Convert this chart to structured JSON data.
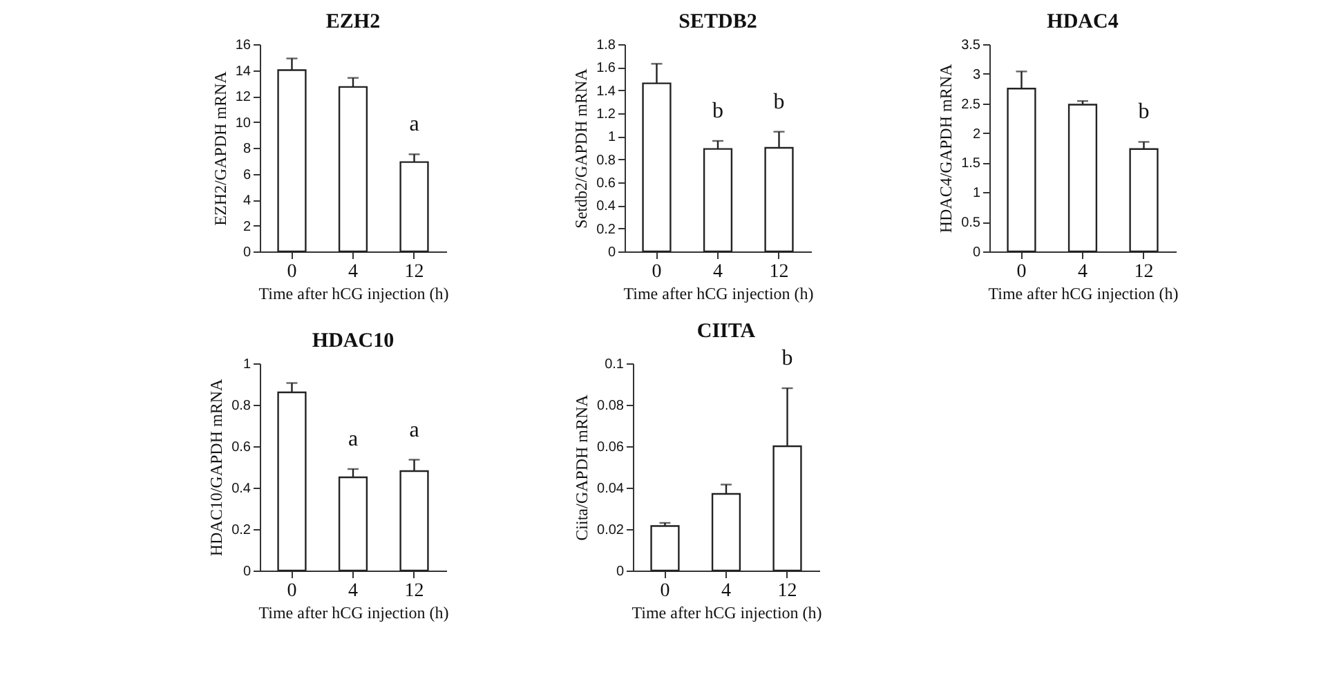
{
  "chart_data": [
    {
      "type": "bar",
      "title": "EZH2",
      "xlabel": "Time  after  hCG injection  (h)",
      "ylabel": "EZH2/GAPDH  mRNA",
      "categories": [
        "0",
        "4",
        "12"
      ],
      "values": [
        14.0,
        12.7,
        6.9
      ],
      "errors": [
        [
          14.0,
          14.9
        ],
        [
          12.7,
          13.4
        ],
        [
          6.9,
          7.5
        ]
      ],
      "color": "#ffffff",
      "ylim": [
        0,
        16
      ],
      "yticks": [
        0,
        2,
        4,
        6,
        8,
        10,
        12,
        14,
        16
      ],
      "annotations": [
        {
          "text": "a",
          "x": "12",
          "y": 7.5
        }
      ]
    },
    {
      "type": "bar",
      "title": "SETDB2",
      "xlabel": "Time  after  hCG injection  (h)",
      "ylabel": "Setdb2/GAPDH  mRNA",
      "categories": [
        "0",
        "4",
        "12"
      ],
      "values": [
        1.46,
        0.89,
        0.9
      ],
      "errors": [
        [
          1.46,
          1.63
        ],
        [
          0.89,
          0.96
        ],
        [
          0.9,
          1.04
        ]
      ],
      "color": "#ffffff",
      "ylim": [
        0,
        1.8
      ],
      "yticks": [
        0,
        0.2,
        0.4,
        0.6,
        0.8,
        1,
        1.2,
        1.4,
        1.6,
        1.8
      ],
      "annotations": [
        {
          "text": "b",
          "x": "4",
          "y": 0.96
        },
        {
          "text": "b",
          "x": "12",
          "y": 1.04
        }
      ]
    },
    {
      "type": "bar",
      "title": "HDAC4",
      "xlabel": "Time  after  hCG injection  (h)",
      "ylabel": "HDAC4/GAPDH  mRNA",
      "categories": [
        "0",
        "4",
        "12"
      ],
      "values": [
        2.75,
        2.48,
        1.73
      ],
      "errors": [
        [
          2.75,
          3.04
        ],
        [
          2.48,
          2.54
        ],
        [
          1.73,
          1.85
        ]
      ],
      "color": "#ffffff",
      "ylim": [
        0,
        3.5
      ],
      "yticks": [
        0,
        0.5,
        1,
        1.5,
        2,
        2.5,
        3,
        3.5
      ],
      "annotations": [
        {
          "text": "b",
          "x": "12",
          "y": 1.85
        }
      ]
    },
    {
      "type": "bar",
      "title": "HDAC10",
      "xlabel": "Time  after  hCG injection  (h)",
      "ylabel": "HDAC10/GAPDH  mRNA",
      "categories": [
        "0",
        "4",
        "12"
      ],
      "values": [
        0.86,
        0.45,
        0.48
      ],
      "errors": [
        [
          0.86,
          0.905
        ],
        [
          0.45,
          0.49
        ],
        [
          0.48,
          0.535
        ]
      ],
      "color": "#ffffff",
      "ylim": [
        0,
        1
      ],
      "yticks": [
        0,
        0.2,
        0.4,
        0.6,
        0.8,
        1
      ],
      "annotations": [
        {
          "text": "a",
          "x": "4",
          "y": 0.49
        },
        {
          "text": "a",
          "x": "12",
          "y": 0.535
        }
      ]
    },
    {
      "type": "bar",
      "title": "CIITA",
      "xlabel": "Time  after  hCG injection  (h)",
      "ylabel": "Ciita/GAPDH  mRNA",
      "categories": [
        "0",
        "4",
        "12"
      ],
      "values": [
        0.0215,
        0.037,
        0.06
      ],
      "errors": [
        [
          0.0215,
          0.023
        ],
        [
          0.037,
          0.0415
        ],
        [
          0.06,
          0.088
        ]
      ],
      "color": "#ffffff",
      "ylim": [
        0,
        0.1
      ],
      "yticks": [
        0,
        0.02,
        0.04,
        0.06,
        0.08,
        0.1
      ],
      "annotations": [
        {
          "text": "b",
          "x": "12",
          "y": 0.088
        }
      ]
    }
  ]
}
